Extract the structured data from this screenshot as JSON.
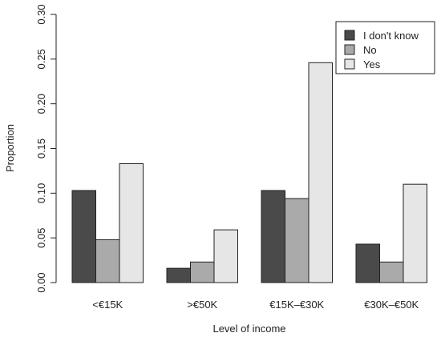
{
  "chart_data": {
    "type": "bar",
    "categories": [
      "<€15K",
      ">€50K",
      "€15K–€30K",
      "€30K–€50K"
    ],
    "series": [
      {
        "name": "I don't know",
        "color": "#4a4a4a",
        "values": [
          0.103,
          0.016,
          0.103,
          0.043
        ]
      },
      {
        "name": "No",
        "color": "#aaaaaa",
        "values": [
          0.048,
          0.023,
          0.094,
          0.023
        ]
      },
      {
        "name": "Yes",
        "color": "#e6e6e6",
        "values": [
          0.133,
          0.059,
          0.246,
          0.11
        ]
      }
    ],
    "xlabel": "Level of income",
    "ylabel": "Proportion",
    "ylim": [
      0,
      0.3
    ],
    "yticks": [
      "0.00",
      "0.05",
      "0.10",
      "0.15",
      "0.20",
      "0.25",
      "0.30"
    ],
    "grid": false,
    "legend_position": "top-right"
  }
}
